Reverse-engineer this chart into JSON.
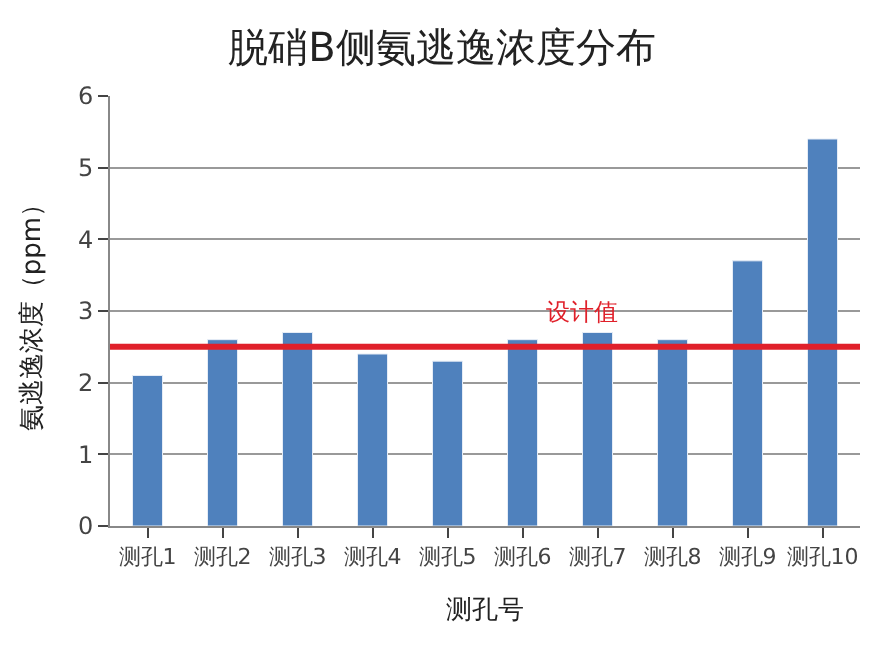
{
  "chart_data": {
    "type": "bar",
    "title": "脱硝B侧氨逃逸浓度分布",
    "xlabel": "测孔号",
    "ylabel": "氨逃逸浓度（ppm）",
    "categories": [
      "测孔1",
      "测孔2",
      "测孔3",
      "测孔4",
      "测孔5",
      "测孔6",
      "测孔7",
      "测孔8",
      "测孔9",
      "测孔10"
    ],
    "values": [
      2.1,
      2.6,
      2.7,
      2.4,
      2.3,
      2.6,
      2.7,
      2.6,
      3.7,
      5.4
    ],
    "color": "#4f81bd",
    "ylim": [
      0,
      6
    ],
    "yticks": [
      0,
      1,
      2,
      3,
      4,
      5,
      6
    ],
    "grid": "y",
    "ref_lines": [
      {
        "axis": "y",
        "value": 2.5,
        "label": "设计值",
        "color": "#e0202a",
        "line_style": "solid"
      }
    ]
  }
}
